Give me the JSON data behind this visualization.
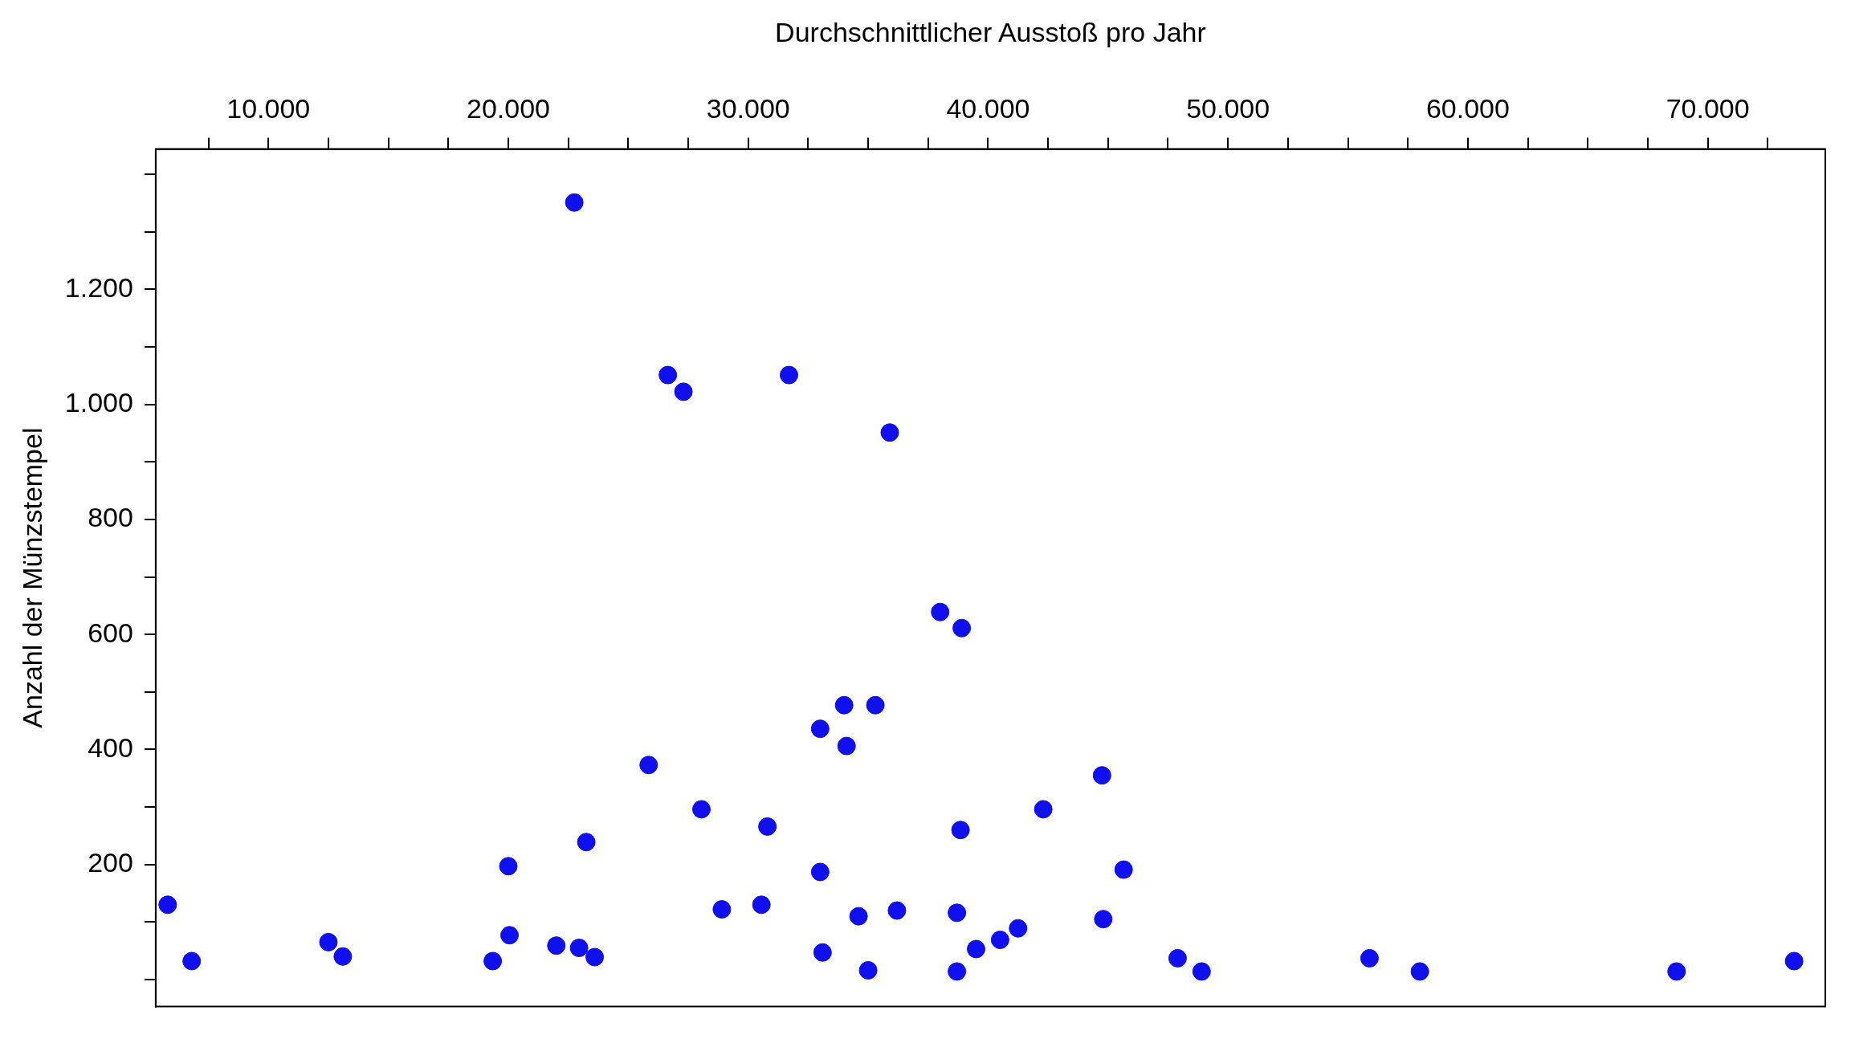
{
  "chart_data": {
    "type": "scatter",
    "xlabel": "Durchschnittlicher Ausstoß pro Jahr",
    "ylabel": "Anzahl der Münzstempel",
    "marker": "circle",
    "grid": false,
    "legend": false,
    "xlim": [
      5300,
      74900
    ],
    "ylim": [
      -47,
      1444
    ],
    "xticks": [
      {
        "value": 7500,
        "label": null
      },
      {
        "value": 10000,
        "label": "10.000"
      },
      {
        "value": 12500,
        "label": null
      },
      {
        "value": 15000,
        "label": null
      },
      {
        "value": 17500,
        "label": null
      },
      {
        "value": 20000,
        "label": "20.000"
      },
      {
        "value": 22500,
        "label": null
      },
      {
        "value": 25000,
        "label": null
      },
      {
        "value": 27500,
        "label": null
      },
      {
        "value": 30000,
        "label": "30.000"
      },
      {
        "value": 32500,
        "label": null
      },
      {
        "value": 35000,
        "label": null
      },
      {
        "value": 37500,
        "label": null
      },
      {
        "value": 40000,
        "label": "40.000"
      },
      {
        "value": 42500,
        "label": null
      },
      {
        "value": 45000,
        "label": null
      },
      {
        "value": 47500,
        "label": null
      },
      {
        "value": 50000,
        "label": "50.000"
      },
      {
        "value": 52500,
        "label": null
      },
      {
        "value": 55000,
        "label": null
      },
      {
        "value": 57500,
        "label": null
      },
      {
        "value": 60000,
        "label": "60.000"
      },
      {
        "value": 62500,
        "label": null
      },
      {
        "value": 65000,
        "label": null
      },
      {
        "value": 67500,
        "label": null
      },
      {
        "value": 70000,
        "label": "70.000"
      },
      {
        "value": 72500,
        "label": null
      }
    ],
    "yticks": [
      {
        "value": 0,
        "label": null
      },
      {
        "value": 100,
        "label": null
      },
      {
        "value": 200,
        "label": "200"
      },
      {
        "value": 300,
        "label": null
      },
      {
        "value": 400,
        "label": "400"
      },
      {
        "value": 500,
        "label": null
      },
      {
        "value": 600,
        "label": "600"
      },
      {
        "value": 700,
        "label": null
      },
      {
        "value": 800,
        "label": "800"
      },
      {
        "value": 900,
        "label": null
      },
      {
        "value": 1000,
        "label": "1.000"
      },
      {
        "value": 1100,
        "label": null
      },
      {
        "value": 1200,
        "label": "1.200"
      },
      {
        "value": 1300,
        "label": null
      },
      {
        "value": 1400,
        "label": null
      }
    ],
    "series": [
      {
        "color": "#1010ee",
        "x": [
          5800,
          6800,
          12500,
          13100,
          19350,
          20000,
          20050,
          22000,
          22750,
          22950,
          23250,
          23600,
          25850,
          26650,
          27300,
          28050,
          28900,
          30550,
          30800,
          31700,
          33000,
          33000,
          33100,
          34000,
          34100,
          34600,
          35000,
          35300,
          35900,
          36200,
          38000,
          38700,
          38700,
          38900,
          38850,
          39500,
          40500,
          41250,
          42300,
          44750,
          44800,
          45650,
          47900,
          48900,
          55900,
          58000,
          68700,
          73600
        ],
        "values": [
          130,
          32,
          65,
          40,
          32,
          197,
          77,
          59,
          1351,
          55,
          239,
          39,
          373,
          1051,
          1022,
          296,
          122,
          130,
          266,
          1051,
          436,
          187,
          47,
          477,
          406,
          110,
          16,
          477,
          951,
          120,
          639,
          116,
          14,
          611,
          260,
          53,
          69,
          89,
          296,
          355,
          105,
          191,
          37,
          14,
          37,
          14,
          14,
          32
        ]
      }
    ]
  }
}
